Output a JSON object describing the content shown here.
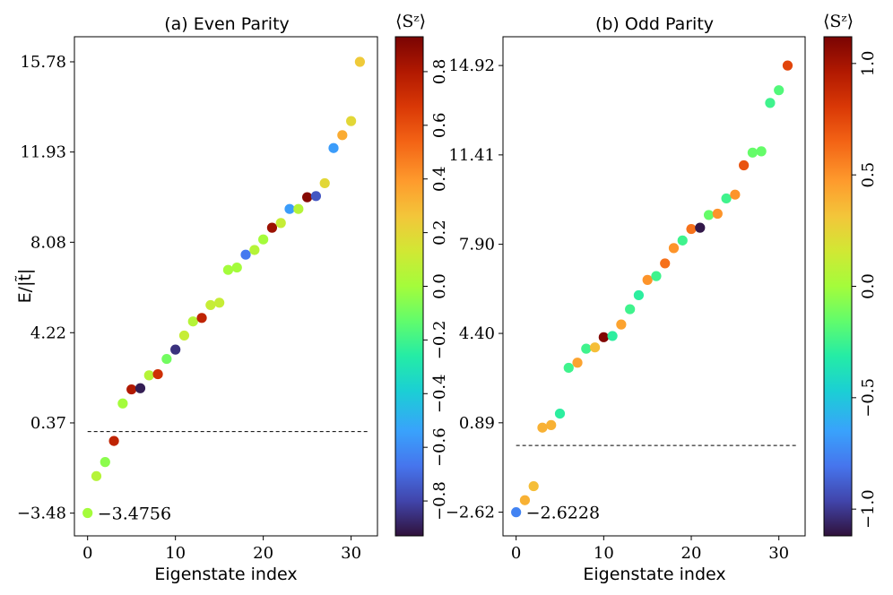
{
  "chart_data": [
    {
      "type": "scatter",
      "title": "(a) Even Parity",
      "xlabel": "Eigenstate index",
      "ylabel": "E/|t̃|",
      "xlim": [
        -1.5,
        33
      ],
      "ylim": [
        -4.45,
        16.85
      ],
      "xticks": [
        0,
        10,
        20,
        30
      ],
      "yticks": [
        -3.48,
        0.37,
        4.22,
        8.08,
        11.93,
        15.78
      ],
      "reference_line": 0.0,
      "annotation": "−3.4756",
      "annotation_index": 0,
      "colorbar": {
        "label": "⟨Sᶻ⟩",
        "range": [
          -0.93,
          0.93
        ],
        "ticks": [
          -0.8,
          -0.6,
          -0.4,
          -0.2,
          0.0,
          0.2,
          0.4,
          0.6,
          0.8
        ]
      },
      "x": [
        0,
        1,
        2,
        3,
        4,
        5,
        6,
        7,
        8,
        9,
        10,
        11,
        12,
        13,
        14,
        15,
        16,
        17,
        18,
        19,
        20,
        21,
        22,
        23,
        24,
        25,
        26,
        27,
        28,
        29,
        30,
        31
      ],
      "y": [
        -3.4756,
        -1.9,
        -1.3,
        -0.4,
        1.2,
        1.8,
        1.85,
        2.4,
        2.45,
        3.1,
        3.5,
        4.1,
        4.7,
        4.85,
        5.4,
        5.5,
        6.9,
        7.0,
        7.55,
        7.75,
        8.2,
        8.7,
        8.9,
        9.5,
        9.5,
        10.0,
        10.05,
        10.6,
        12.1,
        12.65,
        13.25,
        15.78
      ],
      "sz": [
        0.0,
        0.05,
        -0.05,
        0.75,
        0.0,
        0.8,
        -0.9,
        0.05,
        0.7,
        -0.1,
        -0.85,
        0.1,
        0.05,
        0.75,
        0.1,
        0.1,
        0.0,
        0.0,
        -0.65,
        0.05,
        0.0,
        0.85,
        0.1,
        -0.55,
        0.05,
        0.9,
        -0.75,
        0.2,
        -0.55,
        0.35,
        0.2,
        0.25
      ]
    },
    {
      "type": "scatter",
      "title": "(b) Odd Parity",
      "xlabel": "Eigenstate index",
      "ylabel": "",
      "xlim": [
        -1.5,
        33
      ],
      "ylim": [
        -3.55,
        16.05
      ],
      "xticks": [
        0,
        10,
        20,
        30
      ],
      "yticks": [
        -2.62,
        0.89,
        4.4,
        7.9,
        11.41,
        14.92
      ],
      "reference_line": 0.0,
      "annotation": "−2.6228",
      "annotation_index": 0,
      "colorbar": {
        "label": "⟨Sᶻ⟩",
        "range": [
          -1.12,
          1.12
        ],
        "ticks": [
          -1.0,
          -0.5,
          0.0,
          0.5,
          1.0
        ]
      },
      "x": [
        0,
        1,
        2,
        3,
        4,
        5,
        6,
        7,
        8,
        9,
        10,
        11,
        12,
        13,
        14,
        15,
        16,
        17,
        18,
        19,
        20,
        21,
        22,
        23,
        24,
        25,
        26,
        27,
        28,
        29,
        30,
        31
      ],
      "y": [
        -2.6228,
        -2.15,
        -1.6,
        0.7,
        0.8,
        1.25,
        3.05,
        3.25,
        3.8,
        3.85,
        4.25,
        4.3,
        4.75,
        5.35,
        5.9,
        6.5,
        6.65,
        7.15,
        7.75,
        8.05,
        8.5,
        8.55,
        9.05,
        9.1,
        9.7,
        9.85,
        11.0,
        11.5,
        11.55,
        13.45,
        13.95,
        14.92
      ],
      "sz": [
        -0.75,
        0.4,
        0.35,
        0.4,
        0.4,
        -0.3,
        -0.25,
        0.45,
        -0.25,
        0.35,
        1.1,
        -0.3,
        0.45,
        -0.25,
        -0.3,
        0.5,
        -0.25,
        0.6,
        0.5,
        -0.25,
        0.6,
        -1.1,
        -0.15,
        0.5,
        -0.25,
        0.5,
        0.7,
        -0.15,
        -0.15,
        -0.25,
        -0.2,
        0.75
      ]
    }
  ]
}
